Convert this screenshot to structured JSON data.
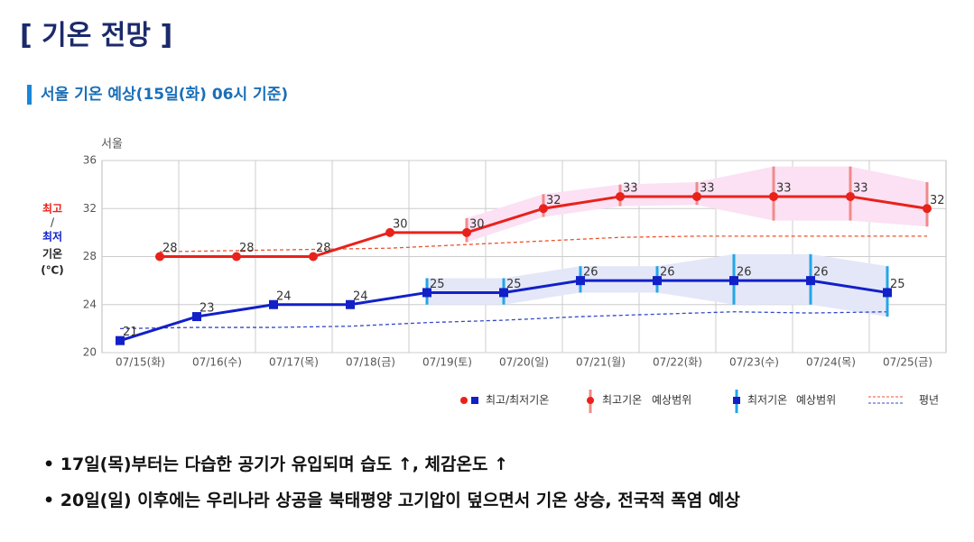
{
  "header": {
    "title": "[ 기온 전망 ]",
    "subtitle": "서울 기온 예상(15일(화) 06시 기준)"
  },
  "chart_data": {
    "type": "line",
    "location": "서울",
    "y_label": {
      "high": "최고",
      "sep": "/",
      "low": "최저",
      "word": "기온",
      "unit": "(℃)"
    },
    "categories": [
      "07/15(화)",
      "07/16(수)",
      "07/17(목)",
      "07/18(금)",
      "07/19(토)",
      "07/20(일)",
      "07/21(월)",
      "07/22(화)",
      "07/23(수)",
      "07/24(목)",
      "07/25(금)"
    ],
    "ylim": [
      20,
      36
    ],
    "yticks": [
      20,
      24,
      28,
      32,
      36
    ],
    "grid": true,
    "series": [
      {
        "color": "#e8221b",
        "range_color": "#f08a8a",
        "band_color": "#fbe1f3",
        "normal_color": "#e8542f",
        "marker": "circle",
        "values": [
          28,
          28,
          28,
          30,
          30,
          32,
          33,
          33,
          33,
          33,
          32
        ],
        "range_low": [
          null,
          null,
          null,
          null,
          29.2,
          31.3,
          32.2,
          32.3,
          31,
          31,
          30.5
        ],
        "range_high": [
          null,
          null,
          null,
          null,
          31.2,
          33.2,
          34,
          34.2,
          35.5,
          35.5,
          34.2
        ],
        "normal": [
          28.4,
          28.5,
          28.6,
          28.7,
          29.0,
          29.3,
          29.6,
          29.7,
          29.7,
          29.7,
          29.7
        ]
      },
      {
        "color": "#1220c8",
        "range_color": "#22a6e6",
        "band_color": "#e4e7f8",
        "normal_color": "#3348c8",
        "marker": "square",
        "values": [
          21,
          23,
          24,
          24,
          25,
          25,
          26,
          26,
          26,
          26,
          25
        ],
        "range_low": [
          null,
          null,
          null,
          null,
          24,
          24,
          25,
          25,
          24,
          24,
          23
        ],
        "range_high": [
          null,
          null,
          null,
          null,
          26.2,
          26.2,
          27.2,
          27.2,
          28.2,
          28.2,
          27.2
        ],
        "normal": [
          22.0,
          22.1,
          22.1,
          22.2,
          22.5,
          22.7,
          23.0,
          23.2,
          23.4,
          23.3,
          23.4
        ]
      }
    ],
    "legend": [
      "최고/최저기온",
      "최고기온",
      "예상범위",
      "최저기온",
      "예상범위",
      "평년"
    ]
  },
  "bullets": [
    "17일(목)부터는 다습한 공기가 유입되며 습도 ↑, 체감온도 ↑",
    "20일(일) 이후에는 우리나라 상공을 북태평양 고기압이 덮으면서 기온 상승, 전국적 폭염 예상"
  ]
}
